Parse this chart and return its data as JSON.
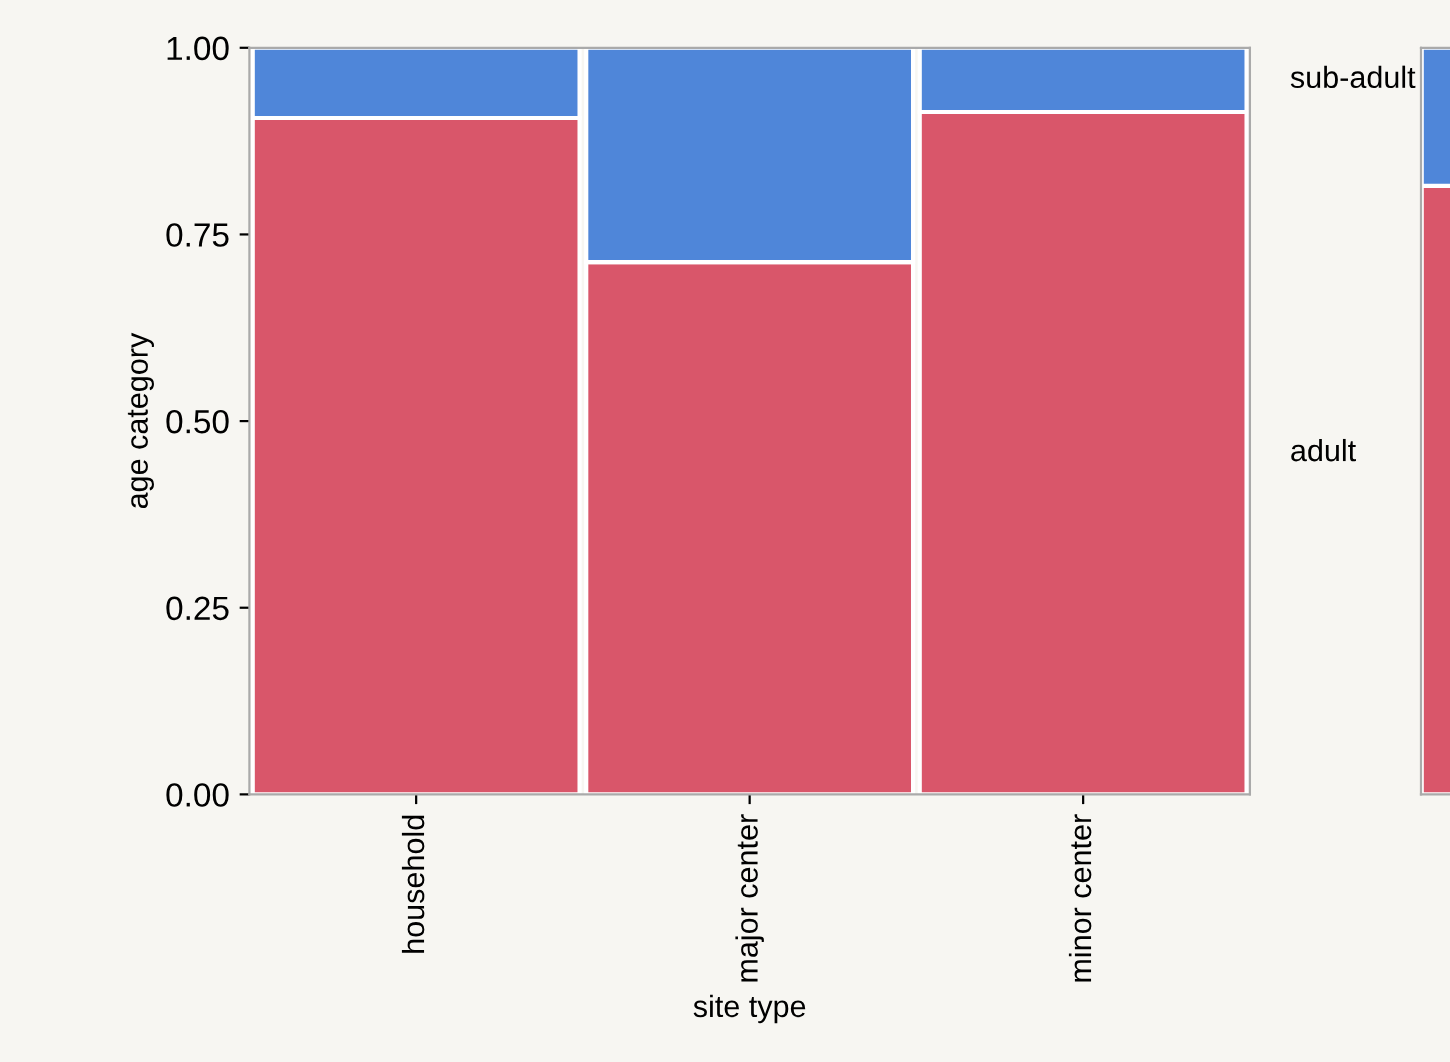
{
  "chart_data": [
    {
      "type": "bar",
      "stacked": true,
      "xlabel": "site type",
      "ylabel": "age category",
      "categories": [
        "household",
        "major center",
        "minor center"
      ],
      "series": [
        {
          "name": "adult",
          "color": "#d9566a",
          "values": [
            0.906,
            0.713,
            0.914
          ]
        },
        {
          "name": "sub-adult",
          "color": "#4f86d9",
          "values": [
            0.094,
            0.287,
            0.086
          ]
        }
      ],
      "ylim": [
        0,
        1
      ],
      "yticks": [
        {
          "value": 0,
          "label": "0.00"
        },
        {
          "value": 0.25,
          "label": "0.25"
        },
        {
          "value": 0.5,
          "label": "0.50"
        },
        {
          "value": 0.75,
          "label": "0.75"
        },
        {
          "value": 1,
          "label": "1.00"
        }
      ],
      "grid": false,
      "legend": false
    },
    {
      "type": "bar",
      "stacked": true,
      "categories": [
        null
      ],
      "series": [
        {
          "color": "#d9566a",
          "values": [
            0.815
          ]
        },
        {
          "color": "#4f86d9",
          "values": [
            0.185
          ]
        }
      ],
      "ylim": [
        0,
        1
      ],
      "tick_labels": false
    }
  ]
}
